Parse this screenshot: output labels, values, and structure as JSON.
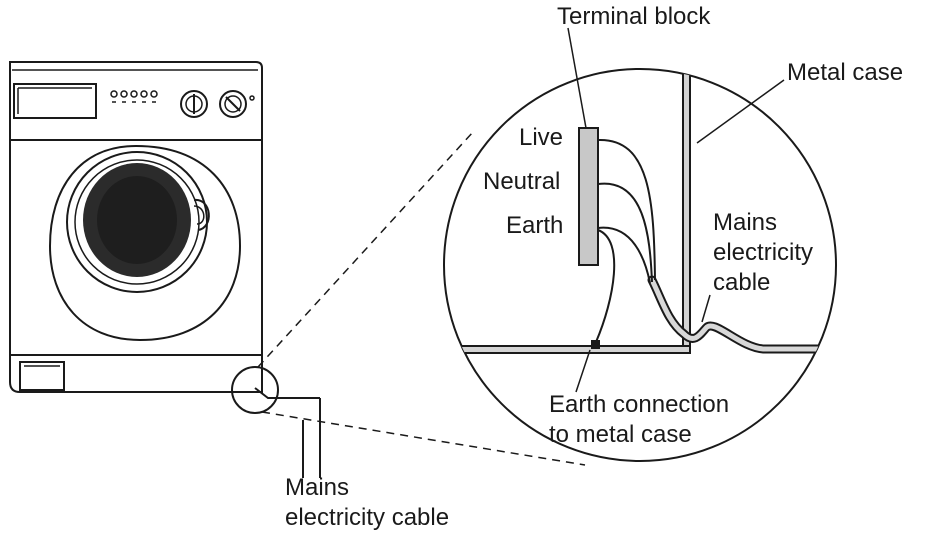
{
  "diagram": {
    "labels": {
      "terminal_block": "Terminal block",
      "metal_case": "Metal case",
      "live": "Live",
      "neutral": "Neutral",
      "earth": "Earth",
      "mains_inset_line1": "Mains",
      "mains_inset_line2": "electricity",
      "mains_inset_line3": "cable",
      "earth_connection_line1": "Earth connection",
      "earth_connection_line2": "to metal case",
      "mains_line1": "Mains",
      "mains_line2": "electricity cable"
    },
    "colors": {
      "ink": "#1a1a1a",
      "drum": "#2b2b2b",
      "block_fill": "#c8c8c8",
      "case_fill": "#d4d4d4"
    }
  }
}
